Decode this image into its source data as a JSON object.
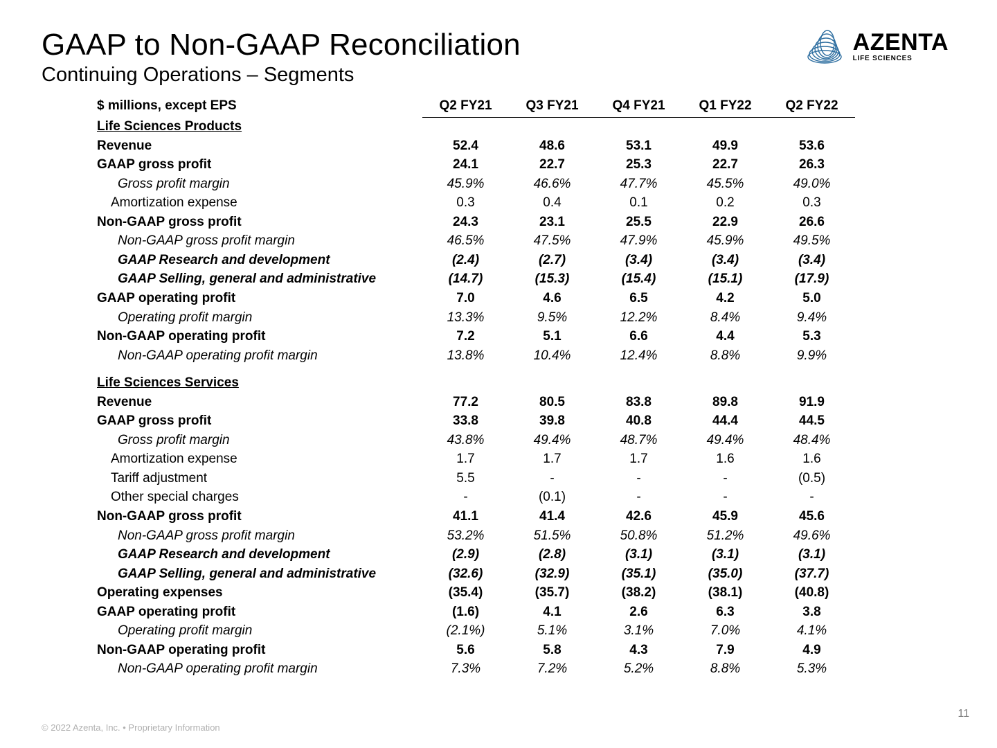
{
  "title": "GAAP to Non-GAAP Reconciliation",
  "subtitle": "Continuing Operations – Segments",
  "logo": {
    "main": "AZENTA",
    "sub": "LIFE SCIENCES",
    "stroke": "#2d6ea0"
  },
  "table": {
    "header_label": "$ millions, except EPS",
    "columns": [
      "Q2 FY21",
      "Q3 FY21",
      "Q4 FY21",
      "Q1 FY22",
      "Q2 FY22"
    ],
    "sections": [
      {
        "title": "Life Sciences Products",
        "rows": [
          {
            "label": "Revenue",
            "bold": true,
            "indent": 0,
            "values": [
              "52.4",
              "48.6",
              "53.1",
              "49.9",
              "53.6"
            ]
          },
          {
            "label": "GAAP gross profit",
            "bold": true,
            "indent": 0,
            "values": [
              "24.1",
              "22.7",
              "25.3",
              "22.7",
              "26.3"
            ]
          },
          {
            "label": "Gross profit margin",
            "italic": true,
            "indent": 2,
            "values": [
              "45.9%",
              "46.6%",
              "47.7%",
              "45.5%",
              "49.0%"
            ]
          },
          {
            "label": "Amortization expense",
            "indent": 1,
            "values": [
              "0.3",
              "0.4",
              "0.1",
              "0.2",
              "0.3"
            ]
          },
          {
            "label": "Non-GAAP gross profit",
            "bold": true,
            "indent": 0,
            "values": [
              "24.3",
              "23.1",
              "25.5",
              "22.9",
              "26.6"
            ]
          },
          {
            "label": "Non-GAAP gross profit margin",
            "italic": true,
            "indent": 2,
            "values": [
              "46.5%",
              "47.5%",
              "47.9%",
              "45.9%",
              "49.5%"
            ]
          },
          {
            "label": "GAAP Research and development",
            "bold": true,
            "italic": true,
            "indent": 2,
            "values": [
              "(2.4)",
              "(2.7)",
              "(3.4)",
              "(3.4)",
              "(3.4)"
            ]
          },
          {
            "label": "GAAP Selling, general and administrative",
            "bold": true,
            "italic": true,
            "indent": 2,
            "values": [
              "(14.7)",
              "(15.3)",
              "(15.4)",
              "(15.1)",
              "(17.9)"
            ]
          },
          {
            "label": "GAAP operating profit",
            "bold": true,
            "indent": 0,
            "values": [
              "7.0",
              "4.6",
              "6.5",
              "4.2",
              "5.0"
            ]
          },
          {
            "label": "Operating profit margin",
            "italic": true,
            "indent": 2,
            "values": [
              "13.3%",
              "9.5%",
              "12.2%",
              "8.4%",
              "9.4%"
            ]
          },
          {
            "label": "Non-GAAP operating profit",
            "bold": true,
            "indent": 0,
            "values": [
              "7.2",
              "5.1",
              "6.6",
              "4.4",
              "5.3"
            ]
          },
          {
            "label": "Non-GAAP operating profit margin",
            "italic": true,
            "indent": 2,
            "values": [
              "13.8%",
              "10.4%",
              "12.4%",
              "8.8%",
              "9.9%"
            ]
          }
        ]
      },
      {
        "title": "Life Sciences Services",
        "rows": [
          {
            "label": "Revenue",
            "bold": true,
            "indent": 0,
            "values": [
              "77.2",
              "80.5",
              "83.8",
              "89.8",
              "91.9"
            ]
          },
          {
            "label": "GAAP gross profit",
            "bold": true,
            "indent": 0,
            "values": [
              "33.8",
              "39.8",
              "40.8",
              "44.4",
              "44.5"
            ]
          },
          {
            "label": "Gross profit margin",
            "italic": true,
            "indent": 2,
            "values": [
              "43.8%",
              "49.4%",
              "48.7%",
              "49.4%",
              "48.4%"
            ]
          },
          {
            "label": "Amortization expense",
            "indent": 1,
            "values": [
              "1.7",
              "1.7",
              "1.7",
              "1.6",
              "1.6"
            ]
          },
          {
            "label": "Tariff adjustment",
            "indent": 1,
            "values": [
              "5.5",
              "-",
              "-",
              "-",
              "(0.5)"
            ]
          },
          {
            "label": "Other special charges",
            "indent": 1,
            "values": [
              "-",
              "(0.1)",
              "-",
              "-",
              "-"
            ]
          },
          {
            "label": "Non-GAAP gross profit",
            "bold": true,
            "indent": 0,
            "values": [
              "41.1",
              "41.4",
              "42.6",
              "45.9",
              "45.6"
            ]
          },
          {
            "label": "Non-GAAP gross profit margin",
            "italic": true,
            "indent": 2,
            "values": [
              "53.2%",
              "51.5%",
              "50.8%",
              "51.2%",
              "49.6%"
            ]
          },
          {
            "label": "GAAP Research and development",
            "bold": true,
            "italic": true,
            "indent": 2,
            "values": [
              "(2.9)",
              "(2.8)",
              "(3.1)",
              "(3.1)",
              "(3.1)"
            ]
          },
          {
            "label": "GAAP Selling, general and administrative",
            "bold": true,
            "italic": true,
            "indent": 2,
            "values": [
              "(32.6)",
              "(32.9)",
              "(35.1)",
              "(35.0)",
              "(37.7)"
            ]
          },
          {
            "label": "Operating expenses",
            "bold": true,
            "indent": 0,
            "values": [
              "(35.4)",
              "(35.7)",
              "(38.2)",
              "(38.1)",
              "(40.8)"
            ]
          },
          {
            "label": "GAAP operating profit",
            "bold": true,
            "indent": 0,
            "values": [
              "(1.6)",
              "4.1",
              "2.6",
              "6.3",
              "3.8"
            ]
          },
          {
            "label": "Operating profit margin",
            "italic": true,
            "indent": 2,
            "values": [
              "(2.1%)",
              "5.1%",
              "3.1%",
              "7.0%",
              "4.1%"
            ]
          },
          {
            "label": "Non-GAAP operating profit",
            "bold": true,
            "indent": 0,
            "values": [
              "5.6",
              "5.8",
              "4.3",
              "7.9",
              "4.9"
            ]
          },
          {
            "label": "Non-GAAP operating profit margin",
            "italic": true,
            "indent": 2,
            "values": [
              "7.3%",
              "7.2%",
              "5.2%",
              "8.8%",
              "5.3%"
            ]
          }
        ]
      }
    ]
  },
  "footer": "© 2022 Azenta, Inc. • Proprietary Information",
  "page_number": "11"
}
